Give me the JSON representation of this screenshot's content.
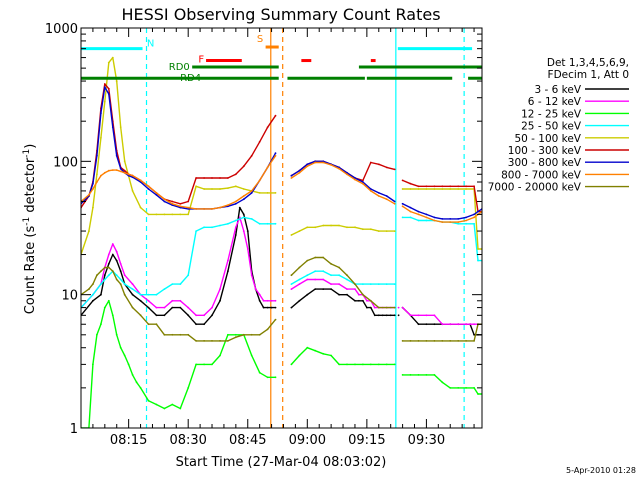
{
  "chart_data": {
    "type": "line",
    "title": "HESSI Observing Summary Count Rates",
    "xlabel": "Start Time (27-Mar-04 08:03:02)",
    "ylabel_main": "Count Rate (s",
    "ylabel_sup": "-1",
    "ylabel_mid": " detector",
    "ylabel_end": ")",
    "ylog": true,
    "ylim": [
      1,
      1000
    ],
    "xlim_min": [
      0,
      101
    ],
    "x_units": "minutes since 08:03:02",
    "xticks": [
      {
        "m": 12,
        "label": "08:15"
      },
      {
        "m": 27,
        "label": "08:30"
      },
      {
        "m": 42,
        "label": "08:45"
      },
      {
        "m": 57,
        "label": "09:00"
      },
      {
        "m": 72,
        "label": "09:15"
      },
      {
        "m": 87,
        "label": "09:30"
      }
    ],
    "yticks": [
      {
        "v": 1,
        "label": "1"
      },
      {
        "v": 10,
        "label": "10"
      },
      {
        "v": 100,
        "label": "100"
      },
      {
        "v": 1000,
        "label": "1000"
      }
    ],
    "legend_header": [
      "Det 1,3,4,5,6,9,",
      "FDecim 1, Att 0"
    ],
    "series": [
      {
        "name": "3 - 6 keV",
        "color": "#000000",
        "x": [
          0,
          3,
          5,
          6,
          7,
          8,
          9,
          10,
          11,
          13,
          15,
          17,
          19,
          21,
          23,
          25,
          27,
          29,
          31,
          33,
          35,
          37,
          39,
          40,
          41,
          42,
          43,
          44,
          45,
          46,
          47,
          48,
          49,
          53,
          55,
          57,
          59,
          61,
          63,
          65,
          67,
          69,
          70,
          71,
          72,
          73,
          74,
          75,
          76,
          77,
          78,
          79,
          80,
          81,
          83,
          85,
          87,
          89,
          91,
          93,
          95,
          97,
          98,
          99,
          100,
          101
        ],
        "y": [
          7,
          9,
          10,
          14,
          17,
          20,
          18,
          15,
          12,
          10,
          9,
          8,
          7,
          7,
          8,
          8,
          7,
          6,
          6,
          7,
          9,
          15,
          28,
          45,
          40,
          30,
          15,
          11,
          9,
          8,
          8,
          8,
          8,
          8,
          9,
          10,
          11,
          11,
          11,
          10,
          10,
          9,
          9,
          9,
          8,
          8,
          7,
          7,
          7,
          7,
          7,
          7,
          7,
          8,
          7,
          6,
          6,
          6,
          6,
          6,
          6,
          6,
          6,
          5,
          5,
          5
        ]
      },
      {
        "name": "6 - 12 keV",
        "color": "#ff00ff",
        "x": [
          0,
          3,
          5,
          6,
          7,
          8,
          9,
          10,
          11,
          13,
          15,
          17,
          19,
          21,
          23,
          25,
          27,
          29,
          31,
          33,
          35,
          37,
          39,
          40,
          41,
          42,
          43,
          44,
          45,
          46,
          47,
          48,
          49,
          53,
          55,
          57,
          59,
          61,
          63,
          65,
          67,
          69,
          70,
          71,
          72,
          73,
          74,
          75,
          76,
          77,
          78,
          79,
          80,
          81,
          83,
          85,
          87,
          89,
          91,
          93,
          95,
          97,
          98,
          99,
          100,
          101
        ],
        "y": [
          8,
          10,
          12,
          16,
          20,
          24,
          21,
          17,
          14,
          12,
          10,
          9,
          8,
          8,
          9,
          9,
          8,
          7,
          7,
          8,
          11,
          18,
          32,
          38,
          30,
          22,
          14,
          11,
          10,
          9,
          9,
          9,
          9,
          11,
          12,
          13,
          13,
          13,
          12,
          12,
          11,
          11,
          10,
          10,
          9,
          9,
          8,
          8,
          8,
          8,
          8,
          8,
          8,
          8,
          7,
          7,
          7,
          7,
          6,
          6,
          6,
          6,
          6,
          6,
          6,
          6
        ]
      },
      {
        "name": "12 - 25 keV",
        "color": "#00ff00",
        "x": [
          0,
          2,
          3,
          4,
          5,
          6,
          7,
          8,
          9,
          10,
          11,
          12,
          13,
          14,
          15,
          17,
          19,
          21,
          23,
          25,
          27,
          29,
          31,
          33,
          35,
          37,
          39,
          41,
          43,
          45,
          47,
          49,
          53,
          55,
          57,
          59,
          61,
          63,
          65,
          67,
          69,
          71,
          73,
          75,
          77,
          79,
          81,
          83,
          85,
          87,
          89,
          91,
          93,
          95,
          97,
          99,
          100,
          101
        ],
        "y": [
          1,
          1,
          3,
          5,
          6,
          8,
          9,
          7,
          5,
          4,
          3.5,
          3,
          2.5,
          2.2,
          2,
          1.6,
          1.5,
          1.4,
          1.5,
          1.4,
          2,
          3,
          3,
          3,
          3.5,
          5,
          5,
          5,
          3.5,
          2.6,
          2.4,
          2.4,
          3,
          3.5,
          4,
          3.8,
          3.6,
          3.5,
          3,
          3,
          3,
          3,
          3,
          3,
          3,
          3,
          2.5,
          2.5,
          2.5,
          2.5,
          2.5,
          2.2,
          2,
          2,
          2,
          2,
          1.8,
          1.8
        ]
      },
      {
        "name": "25 - 50 keV",
        "color": "#00ffff",
        "x": [
          0,
          3,
          5,
          6,
          7,
          8,
          9,
          10,
          11,
          13,
          15,
          17,
          19,
          21,
          23,
          25,
          27,
          29,
          31,
          33,
          35,
          37,
          39,
          41,
          43,
          45,
          47,
          49,
          53,
          55,
          57,
          59,
          61,
          63,
          65,
          67,
          69,
          71,
          73,
          75,
          77,
          79,
          81,
          83,
          85,
          87,
          89,
          91,
          93,
          95,
          97,
          99,
          100,
          101
        ],
        "y": [
          8,
          10,
          12,
          13,
          14,
          15,
          14,
          13,
          12,
          11,
          10,
          10,
          10,
          11,
          12,
          12,
          14,
          30,
          32,
          32,
          33,
          34,
          36,
          38,
          37,
          34,
          34,
          34,
          12,
          13,
          14,
          15,
          15,
          14,
          14,
          13,
          12,
          12,
          12,
          12,
          12,
          12,
          38,
          38,
          36,
          36,
          36,
          35,
          35,
          34,
          34,
          34,
          18,
          18
        ]
      },
      {
        "name": "50 - 100 keV",
        "color": "#cccc00",
        "x": [
          0,
          2,
          3,
          4,
          5,
          6,
          7,
          8,
          9,
          10,
          11,
          13,
          15,
          17,
          19,
          21,
          23,
          25,
          27,
          29,
          31,
          33,
          35,
          37,
          39,
          41,
          43,
          45,
          47,
          49,
          53,
          55,
          57,
          59,
          61,
          63,
          65,
          67,
          69,
          71,
          73,
          75,
          77,
          79,
          81,
          83,
          85,
          87,
          89,
          91,
          93,
          95,
          97,
          99,
          100,
          101
        ],
        "y": [
          20,
          30,
          45,
          80,
          150,
          280,
          550,
          600,
          400,
          180,
          100,
          60,
          45,
          40,
          40,
          40,
          40,
          40,
          40,
          65,
          62,
          62,
          62,
          63,
          65,
          62,
          60,
          58,
          58,
          58,
          28,
          30,
          32,
          32,
          33,
          33,
          33,
          32,
          32,
          31,
          31,
          30,
          30,
          30,
          62,
          62,
          62,
          62,
          62,
          62,
          62,
          62,
          62,
          62,
          22,
          22
        ]
      },
      {
        "name": "100 - 300 keV",
        "color": "#cc0000",
        "x": [
          0,
          2,
          3,
          4,
          5,
          6,
          7,
          8,
          9,
          10,
          11,
          12,
          13,
          15,
          17,
          19,
          21,
          23,
          25,
          27,
          29,
          31,
          33,
          35,
          37,
          39,
          41,
          43,
          45,
          47,
          49,
          53,
          55,
          57,
          59,
          61,
          63,
          65,
          67,
          69,
          71,
          73,
          75,
          77,
          79,
          81,
          83,
          85,
          87,
          89,
          91,
          93,
          95,
          97,
          99,
          100,
          101
        ],
        "y": [
          45,
          55,
          70,
          120,
          250,
          380,
          350,
          200,
          120,
          90,
          85,
          80,
          78,
          72,
          65,
          58,
          52,
          50,
          48,
          50,
          75,
          75,
          75,
          75,
          75,
          80,
          92,
          110,
          140,
          180,
          220,
          78,
          85,
          95,
          100,
          100,
          95,
          90,
          82,
          75,
          72,
          98,
          95,
          90,
          87,
          72,
          68,
          65,
          65,
          65,
          65,
          65,
          65,
          65,
          65,
          42,
          42
        ]
      },
      {
        "name": "300 - 800 keV",
        "color": "#0000cc",
        "x": [
          0,
          2,
          3,
          4,
          5,
          6,
          7,
          8,
          9,
          10,
          11,
          12,
          13,
          15,
          17,
          19,
          21,
          23,
          25,
          27,
          29,
          31,
          33,
          35,
          37,
          39,
          41,
          43,
          45,
          47,
          49,
          53,
          55,
          57,
          59,
          61,
          63,
          65,
          67,
          69,
          71,
          73,
          75,
          77,
          79,
          81,
          83,
          85,
          87,
          89,
          91,
          93,
          95,
          97,
          99,
          100,
          101
        ],
        "y": [
          48,
          55,
          68,
          110,
          230,
          360,
          320,
          180,
          110,
          88,
          82,
          78,
          76,
          70,
          62,
          56,
          50,
          47,
          45,
          44,
          44,
          44,
          44,
          45,
          46,
          48,
          52,
          58,
          72,
          90,
          115,
          78,
          85,
          95,
          100,
          100,
          95,
          90,
          82,
          75,
          70,
          62,
          58,
          55,
          50,
          48,
          45,
          42,
          40,
          38,
          37,
          37,
          37,
          38,
          40,
          42,
          44
        ]
      },
      {
        "name": "800 - 7000 keV",
        "color": "#ff8000",
        "x": [
          0,
          2,
          3,
          4,
          5,
          6,
          7,
          8,
          9,
          10,
          11,
          12,
          13,
          15,
          17,
          19,
          21,
          23,
          25,
          27,
          29,
          31,
          33,
          35,
          37,
          39,
          41,
          43,
          45,
          47,
          49,
          53,
          55,
          57,
          59,
          61,
          63,
          65,
          67,
          69,
          71,
          73,
          75,
          77,
          79,
          81,
          83,
          85,
          87,
          89,
          91,
          93,
          95,
          97,
          99,
          100,
          101
        ],
        "y": [
          50,
          56,
          62,
          70,
          78,
          82,
          85,
          86,
          86,
          84,
          82,
          80,
          78,
          72,
          65,
          58,
          52,
          48,
          46,
          45,
          44,
          44,
          44,
          45,
          47,
          50,
          55,
          60,
          72,
          90,
          110,
          75,
          82,
          92,
          98,
          98,
          94,
          88,
          80,
          73,
          68,
          60,
          55,
          52,
          48,
          46,
          42,
          40,
          38,
          36,
          35,
          35,
          35,
          36,
          38,
          40,
          42
        ]
      },
      {
        "name": "7000 - 20000 keV",
        "color": "#808000",
        "x": [
          0,
          2,
          3,
          4,
          5,
          6,
          7,
          8,
          9,
          10,
          11,
          13,
          15,
          17,
          19,
          21,
          23,
          25,
          27,
          29,
          31,
          33,
          35,
          37,
          39,
          41,
          43,
          45,
          47,
          49,
          53,
          55,
          57,
          59,
          61,
          63,
          65,
          67,
          69,
          71,
          73,
          75,
          77,
          79,
          81,
          83,
          85,
          87,
          89,
          91,
          93,
          95,
          97,
          99,
          100,
          101
        ],
        "y": [
          10,
          11,
          12,
          14,
          15,
          16,
          16,
          15,
          13,
          12,
          10,
          8,
          7,
          6,
          6,
          5,
          5,
          5,
          5,
          4.5,
          4.5,
          4.5,
          4.5,
          4.5,
          4.8,
          5,
          5,
          5,
          5.5,
          6.5,
          14,
          16,
          18,
          19,
          19,
          17,
          16,
          14,
          12,
          10,
          9,
          8,
          8,
          8,
          4.5,
          4.5,
          4.5,
          4.5,
          4.5,
          4.5,
          4.5,
          4.5,
          4.5,
          4.5,
          6,
          6
        ]
      }
    ],
    "gaps": [
      [
        49.3,
        52.0
      ],
      [
        79.6,
        80.4
      ]
    ],
    "vlines": [
      {
        "m": 47.8,
        "color": "#ff8000",
        "style": "solid"
      },
      {
        "m": 50.8,
        "color": "#ff8000",
        "style": "dashed"
      },
      {
        "m": 16.5,
        "color": "#00ffff",
        "style": "dashed"
      },
      {
        "m": 79.3,
        "color": "#00ffff",
        "style": "solid"
      },
      {
        "m": 96.5,
        "color": "#00ffff",
        "style": "dashed"
      }
    ],
    "flag_bars": [
      {
        "label": "N",
        "color": "#00ffff",
        "level": 700,
        "segments": [
          [
            0,
            15.5
          ],
          [
            79.8,
            98.5
          ]
        ]
      },
      {
        "label": "S",
        "color": "#ff8000",
        "level": 720,
        "segments": [
          [
            46.5,
            49.8
          ]
        ]
      },
      {
        "label": "F",
        "color": "#ff0000",
        "level": 570,
        "segments": [
          [
            31.5,
            40.5
          ],
          [
            55.5,
            58
          ],
          [
            73,
            74.2
          ]
        ]
      },
      {
        "label": "RD0",
        "color": "#008000",
        "level": 510,
        "segments": [
          [
            28,
            49.8
          ],
          [
            70,
            101
          ]
        ]
      },
      {
        "label": "RD4",
        "color": "#008000",
        "level": 420,
        "segments": [
          [
            0,
            49.8
          ],
          [
            52,
            71.5
          ],
          [
            72,
            93.5
          ],
          [
            97.5,
            101
          ]
        ]
      }
    ],
    "footer": "5-Apr-2010 01:28"
  }
}
